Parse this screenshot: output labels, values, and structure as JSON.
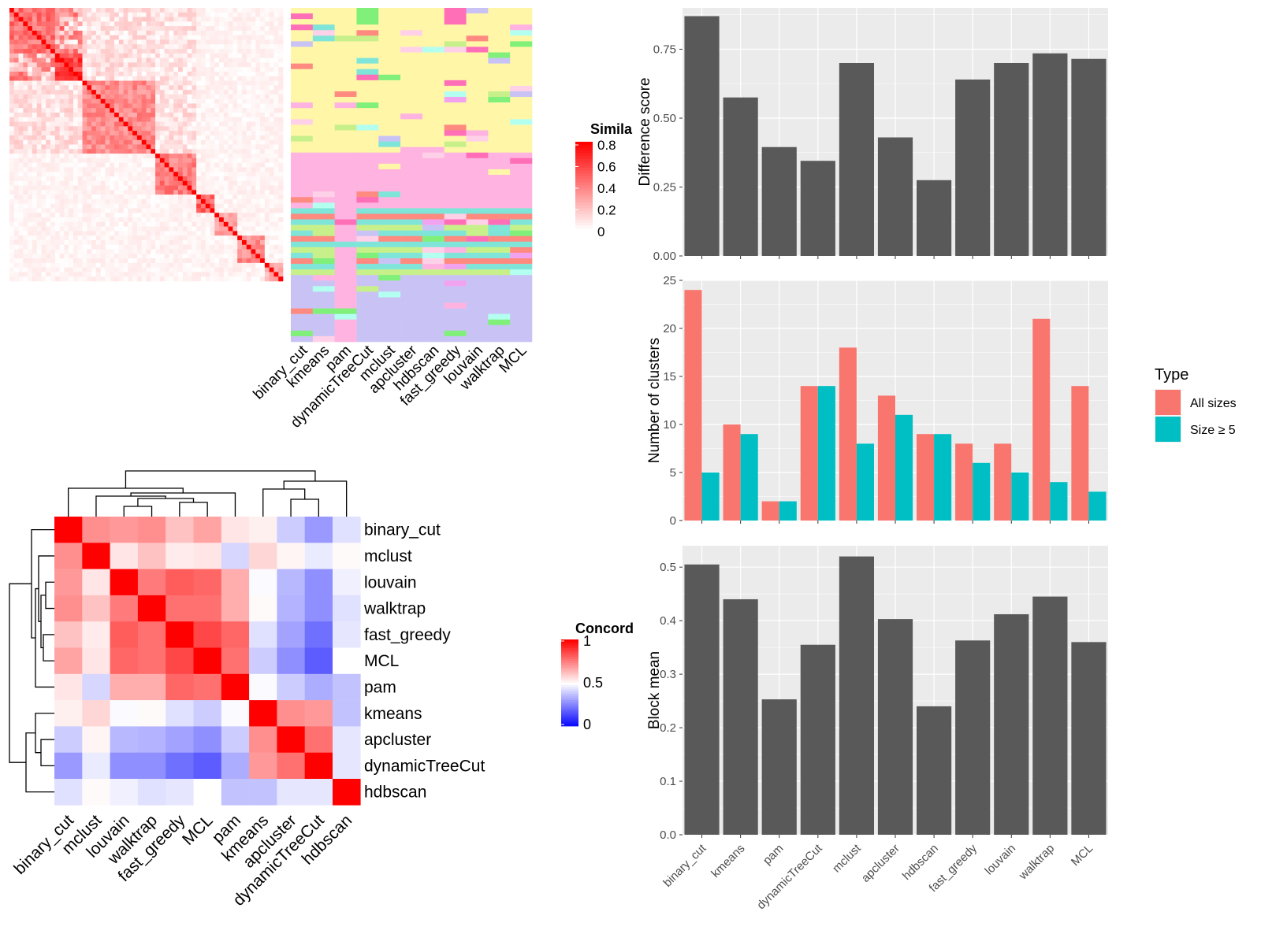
{
  "colors": {
    "panel_bg": "#ebebeb",
    "grid": "#ffffff",
    "bar_dark": "#595959",
    "all_sizes": "#f8766d",
    "size_ge5": "#00bfc4",
    "heat_red": "#ff0000",
    "heat_blue": "#0000ff",
    "class_palette": [
      "#fff6a8",
      "#ffb3e0",
      "#7fe5d8",
      "#ff8a80",
      "#c9c3f5",
      "#f2a3f0",
      "#b3fff0",
      "#c7f08a",
      "#ffd1e8",
      "#80f07a",
      "#ff6fb8"
    ]
  },
  "similarity_legend": {
    "title": "Simila",
    "ticks": [
      "0.8",
      "0.6",
      "0.4",
      "0.2",
      "0"
    ]
  },
  "concordance_legend": {
    "title": "Concord",
    "ticks": [
      "1",
      "0.5",
      "0"
    ]
  },
  "membership_methods": [
    "binary_cut",
    "kmeans",
    "pam",
    "dynamicTreeCut",
    "mclust",
    "apcluster",
    "hdbscan",
    "fast_greedy",
    "louvain",
    "walktrap",
    "MCL"
  ],
  "concordance_order": [
    "binary_cut",
    "mclust",
    "louvain",
    "walktrap",
    "fast_greedy",
    "MCL",
    "pam",
    "kmeans",
    "apcluster",
    "dynamicTreeCut",
    "hdbscan"
  ],
  "concordance_matrix": [
    [
      1.0,
      0.72,
      0.7,
      0.72,
      0.62,
      0.68,
      0.55,
      0.53,
      0.4,
      0.3,
      0.44
    ],
    [
      0.72,
      1.0,
      0.55,
      0.62,
      0.54,
      0.55,
      0.42,
      0.58,
      0.52,
      0.46,
      0.51
    ],
    [
      0.7,
      0.55,
      1.0,
      0.76,
      0.82,
      0.8,
      0.66,
      0.49,
      0.36,
      0.28,
      0.47
    ],
    [
      0.72,
      0.62,
      0.76,
      1.0,
      0.78,
      0.78,
      0.66,
      0.51,
      0.35,
      0.28,
      0.44
    ],
    [
      0.62,
      0.54,
      0.82,
      0.78,
      1.0,
      0.86,
      0.8,
      0.44,
      0.32,
      0.22,
      0.45
    ],
    [
      0.68,
      0.55,
      0.8,
      0.78,
      0.86,
      1.0,
      0.78,
      0.4,
      0.28,
      0.18,
      0.5
    ],
    [
      0.55,
      0.42,
      0.66,
      0.66,
      0.8,
      0.78,
      1.0,
      0.49,
      0.4,
      0.34,
      0.38
    ],
    [
      0.53,
      0.58,
      0.49,
      0.51,
      0.44,
      0.4,
      0.49,
      1.0,
      0.72,
      0.7,
      0.38
    ],
    [
      0.4,
      0.52,
      0.36,
      0.35,
      0.32,
      0.28,
      0.4,
      0.72,
      1.0,
      0.78,
      0.45
    ],
    [
      0.3,
      0.46,
      0.28,
      0.28,
      0.22,
      0.18,
      0.34,
      0.7,
      0.78,
      1.0,
      0.45
    ],
    [
      0.44,
      0.51,
      0.47,
      0.44,
      0.45,
      0.5,
      0.38,
      0.38,
      0.45,
      0.45,
      1.0
    ]
  ],
  "chart_data": [
    {
      "type": "bar",
      "categories": [
        "binary_cut",
        "kmeans",
        "pam",
        "dynamicTreeCut",
        "mclust",
        "apcluster",
        "hdbscan",
        "fast_greedy",
        "louvain",
        "walktrap",
        "MCL"
      ],
      "values": [
        0.87,
        0.575,
        0.395,
        0.345,
        0.7,
        0.43,
        0.275,
        0.64,
        0.7,
        0.735,
        0.715
      ],
      "ylabel": "Difference score",
      "ylim": [
        0,
        0.9
      ],
      "yticks": [
        "0.00",
        "0.25",
        "0.50",
        "0.75"
      ],
      "grid": true
    },
    {
      "type": "bar",
      "categories": [
        "binary_cut",
        "kmeans",
        "pam",
        "dynamicTreeCut",
        "mclust",
        "apcluster",
        "hdbscan",
        "fast_greedy",
        "louvain",
        "walktrap",
        "MCL"
      ],
      "series": [
        {
          "name": "All sizes",
          "values": [
            24,
            10,
            2,
            14,
            18,
            13,
            9,
            8,
            8,
            21,
            14
          ]
        },
        {
          "name": "Size ≥ 5",
          "values": [
            5,
            9,
            2,
            14,
            8,
            11,
            9,
            6,
            5,
            4,
            3
          ]
        }
      ],
      "ylabel": "Number of clusters",
      "ylim": [
        0,
        25
      ],
      "yticks": [
        "0",
        "5",
        "10",
        "15",
        "20",
        "25"
      ],
      "legend_title": "Type",
      "legend_position": "right",
      "grid": true
    },
    {
      "type": "bar",
      "categories": [
        "binary_cut",
        "kmeans",
        "pam",
        "dynamicTreeCut",
        "mclust",
        "apcluster",
        "hdbscan",
        "fast_greedy",
        "louvain",
        "walktrap",
        "MCL"
      ],
      "values": [
        0.505,
        0.44,
        0.253,
        0.355,
        0.52,
        0.403,
        0.24,
        0.363,
        0.412,
        0.445,
        0.36
      ],
      "ylabel": "Block mean",
      "ylim": [
        0,
        0.54
      ],
      "yticks": [
        "0.0",
        "0.1",
        "0.2",
        "0.3",
        "0.4",
        "0.5"
      ],
      "grid": true
    }
  ]
}
